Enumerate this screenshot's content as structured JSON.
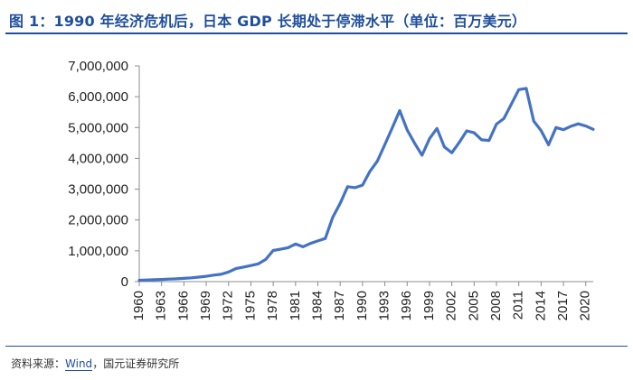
{
  "header": {
    "title": "图 1：1990 年经济危机后，日本 GDP 长期处于停滞水平（单位：百万美元）"
  },
  "footer": {
    "source_prefix": "资料来源：",
    "source_wind": "Wind",
    "source_suffix": "，国元证券研究所"
  },
  "colors": {
    "line": "#4472c4",
    "title": "#1f4e9c",
    "axis": "#8c8c8c"
  },
  "chart_data": {
    "type": "line",
    "title": "图 1：1990 年经济危机后，日本 GDP 长期处于停滞水平（单位：百万美元）",
    "xlabel": "",
    "ylabel": "",
    "ylim": [
      0,
      7000000
    ],
    "yticks": [
      0,
      1000000,
      2000000,
      3000000,
      4000000,
      5000000,
      6000000,
      7000000
    ],
    "ytick_labels": [
      "0",
      "1,000,000",
      "2,000,000",
      "3,000,000",
      "4,000,000",
      "5,000,000",
      "6,000,000",
      "7,000,000"
    ],
    "xticks": [
      "1960",
      "1963",
      "1966",
      "1969",
      "1972",
      "1975",
      "1978",
      "1981",
      "1984",
      "1987",
      "1990",
      "1993",
      "1996",
      "1999",
      "2002",
      "2005",
      "2008",
      "2011",
      "2014",
      "2017",
      "2020"
    ],
    "grid": false,
    "series": [
      {
        "name": "日本 GDP",
        "x": [
          1960,
          1961,
          1962,
          1963,
          1964,
          1965,
          1966,
          1967,
          1968,
          1969,
          1970,
          1971,
          1972,
          1973,
          1974,
          1975,
          1976,
          1977,
          1978,
          1979,
          1980,
          1981,
          1982,
          1983,
          1984,
          1985,
          1986,
          1987,
          1988,
          1989,
          1990,
          1991,
          1992,
          1993,
          1994,
          1995,
          1996,
          1997,
          1998,
          1999,
          2000,
          2001,
          2002,
          2003,
          2004,
          2005,
          2006,
          2007,
          2008,
          2009,
          2010,
          2011,
          2012,
          2013,
          2014,
          2015,
          2016,
          2017,
          2018,
          2019,
          2020,
          2021
        ],
        "values": [
          44000,
          53000,
          61000,
          69000,
          82000,
          91000,
          105000,
          124000,
          147000,
          172000,
          210000,
          237000,
          312000,
          425000,
          472000,
          521000,
          576000,
          721000,
          1010000,
          1050000,
          1100000,
          1220000,
          1130000,
          1240000,
          1320000,
          1400000,
          2090000,
          2540000,
          3080000,
          3050000,
          3130000,
          3580000,
          3910000,
          4450000,
          4990000,
          5550000,
          4920000,
          4490000,
          4100000,
          4640000,
          4970000,
          4370000,
          4180000,
          4520000,
          4890000,
          4830000,
          4600000,
          4580000,
          5110000,
          5290000,
          5760000,
          6230000,
          6270000,
          5210000,
          4900000,
          4440000,
          5000000,
          4930000,
          5040000,
          5120000,
          5050000,
          4940000
        ]
      }
    ]
  }
}
